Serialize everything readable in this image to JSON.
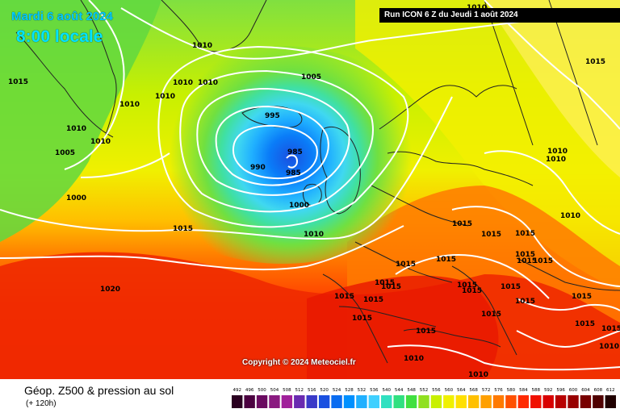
{
  "header": {
    "valid_date": "Mardi 6 août 2024",
    "valid_time": "8:00 locale",
    "run_info": "Run ICON 6 Z du Jeudi 1 août 2024"
  },
  "copyright": "Copyright © 2024 Meteociel.fr",
  "footer": {
    "title": "Géop. Z500 & pression au sol",
    "subtitle": "(+ 120h)"
  },
  "legend": {
    "ticks": [
      "492",
      "496",
      "500",
      "504",
      "508",
      "512",
      "516",
      "520",
      "524",
      "528",
      "532",
      "536",
      "540",
      "544",
      "548",
      "552",
      "556",
      "560",
      "564",
      "568",
      "572",
      "576",
      "580",
      "584",
      "588",
      "592",
      "596",
      "600",
      "604",
      "608",
      "612"
    ],
    "colors": [
      "#2a0020",
      "#4b0040",
      "#6a0a60",
      "#8a1a80",
      "#a0209a",
      "#6a2ab0",
      "#3a3ac8",
      "#1a50e0",
      "#0a6cf0",
      "#0090ff",
      "#20b0ff",
      "#40d0ff",
      "#30e0c0",
      "#30e080",
      "#40e040",
      "#90e020",
      "#c8f000",
      "#f0f000",
      "#ffe000",
      "#ffc000",
      "#ffa000",
      "#ff7a00",
      "#ff5000",
      "#ff2a00",
      "#f01000",
      "#d80000",
      "#b80000",
      "#980000",
      "#780000",
      "#500000",
      "#200000"
    ]
  },
  "isobars": [
    {
      "value": "1010",
      "label_id": "a"
    },
    {
      "value": "1015",
      "label_id": "b"
    },
    {
      "value": "1010",
      "label_id": "c"
    },
    {
      "value": "1010",
      "label_id": "d"
    },
    {
      "value": "1010",
      "label_id": "e"
    },
    {
      "value": "1015",
      "label_id": "f"
    },
    {
      "value": "1005",
      "label_id": "g"
    },
    {
      "value": "1010",
      "label_id": "h"
    },
    {
      "value": "1010",
      "label_id": "i"
    },
    {
      "value": "1010",
      "label_id": "j"
    },
    {
      "value": "1010",
      "label_id": "k"
    },
    {
      "value": "1005",
      "label_id": "l"
    },
    {
      "value": "1000",
      "label_id": "m"
    },
    {
      "value": "995",
      "label_id": "n"
    },
    {
      "value": "985",
      "label_id": "o"
    },
    {
      "value": "985",
      "label_id": "p"
    },
    {
      "value": "990",
      "label_id": "q"
    },
    {
      "value": "1000",
      "label_id": "r"
    },
    {
      "value": "1010",
      "label_id": "s"
    },
    {
      "value": "1015",
      "label_id": "t"
    },
    {
      "value": "1020",
      "label_id": "u"
    },
    {
      "value": "1015",
      "label_id": "v"
    },
    {
      "value": "1015",
      "label_id": "w"
    },
    {
      "value": "1015",
      "label_id": "x"
    },
    {
      "value": "1015",
      "label_id": "y"
    },
    {
      "value": "1015",
      "label_id": "z"
    },
    {
      "value": "1010",
      "label_id": "aa"
    },
    {
      "value": "1010",
      "label_id": "ab"
    },
    {
      "value": "1010",
      "label_id": "ac"
    },
    {
      "value": "1015",
      "label_id": "ad"
    },
    {
      "value": "1015",
      "label_id": "ae"
    },
    {
      "value": "1015",
      "label_id": "af"
    },
    {
      "value": "1015",
      "label_id": "ag"
    },
    {
      "value": "1015",
      "label_id": "ah"
    },
    {
      "value": "1015",
      "label_id": "ai"
    },
    {
      "value": "1015",
      "label_id": "aj"
    },
    {
      "value": "1015",
      "label_id": "ak"
    },
    {
      "value": "1015",
      "label_id": "al"
    },
    {
      "value": "1015",
      "label_id": "am"
    },
    {
      "value": "1015",
      "label_id": "an"
    },
    {
      "value": "1015",
      "label_id": "ao"
    },
    {
      "value": "1015",
      "label_id": "ap"
    },
    {
      "value": "1015",
      "label_id": "aq"
    },
    {
      "value": "1015",
      "label_id": "ar"
    },
    {
      "value": "1015",
      "label_id": "as"
    },
    {
      "value": "1015",
      "label_id": "at"
    },
    {
      "value": "1010",
      "label_id": "au"
    },
    {
      "value": "1010",
      "label_id": "av"
    },
    {
      "value": "1010",
      "label_id": "aw"
    }
  ]
}
